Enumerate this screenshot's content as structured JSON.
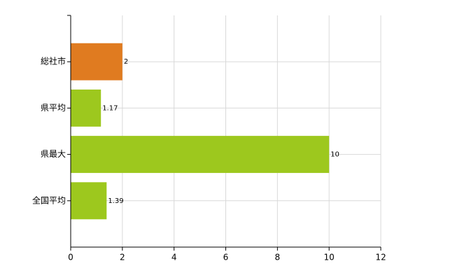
{
  "chart_data": {
    "type": "hbar",
    "categories": [
      "総社市",
      "県平均",
      "県最大",
      "全国平均"
    ],
    "values": [
      2,
      1.17,
      10,
      1.39
    ],
    "colors": [
      "#e07b20",
      "#9dc81e",
      "#9dc81e",
      "#9dc81e"
    ],
    "xlim": [
      0,
      12
    ],
    "xticks": [
      0,
      2,
      4,
      6,
      8,
      10,
      12
    ],
    "grid": true
  }
}
